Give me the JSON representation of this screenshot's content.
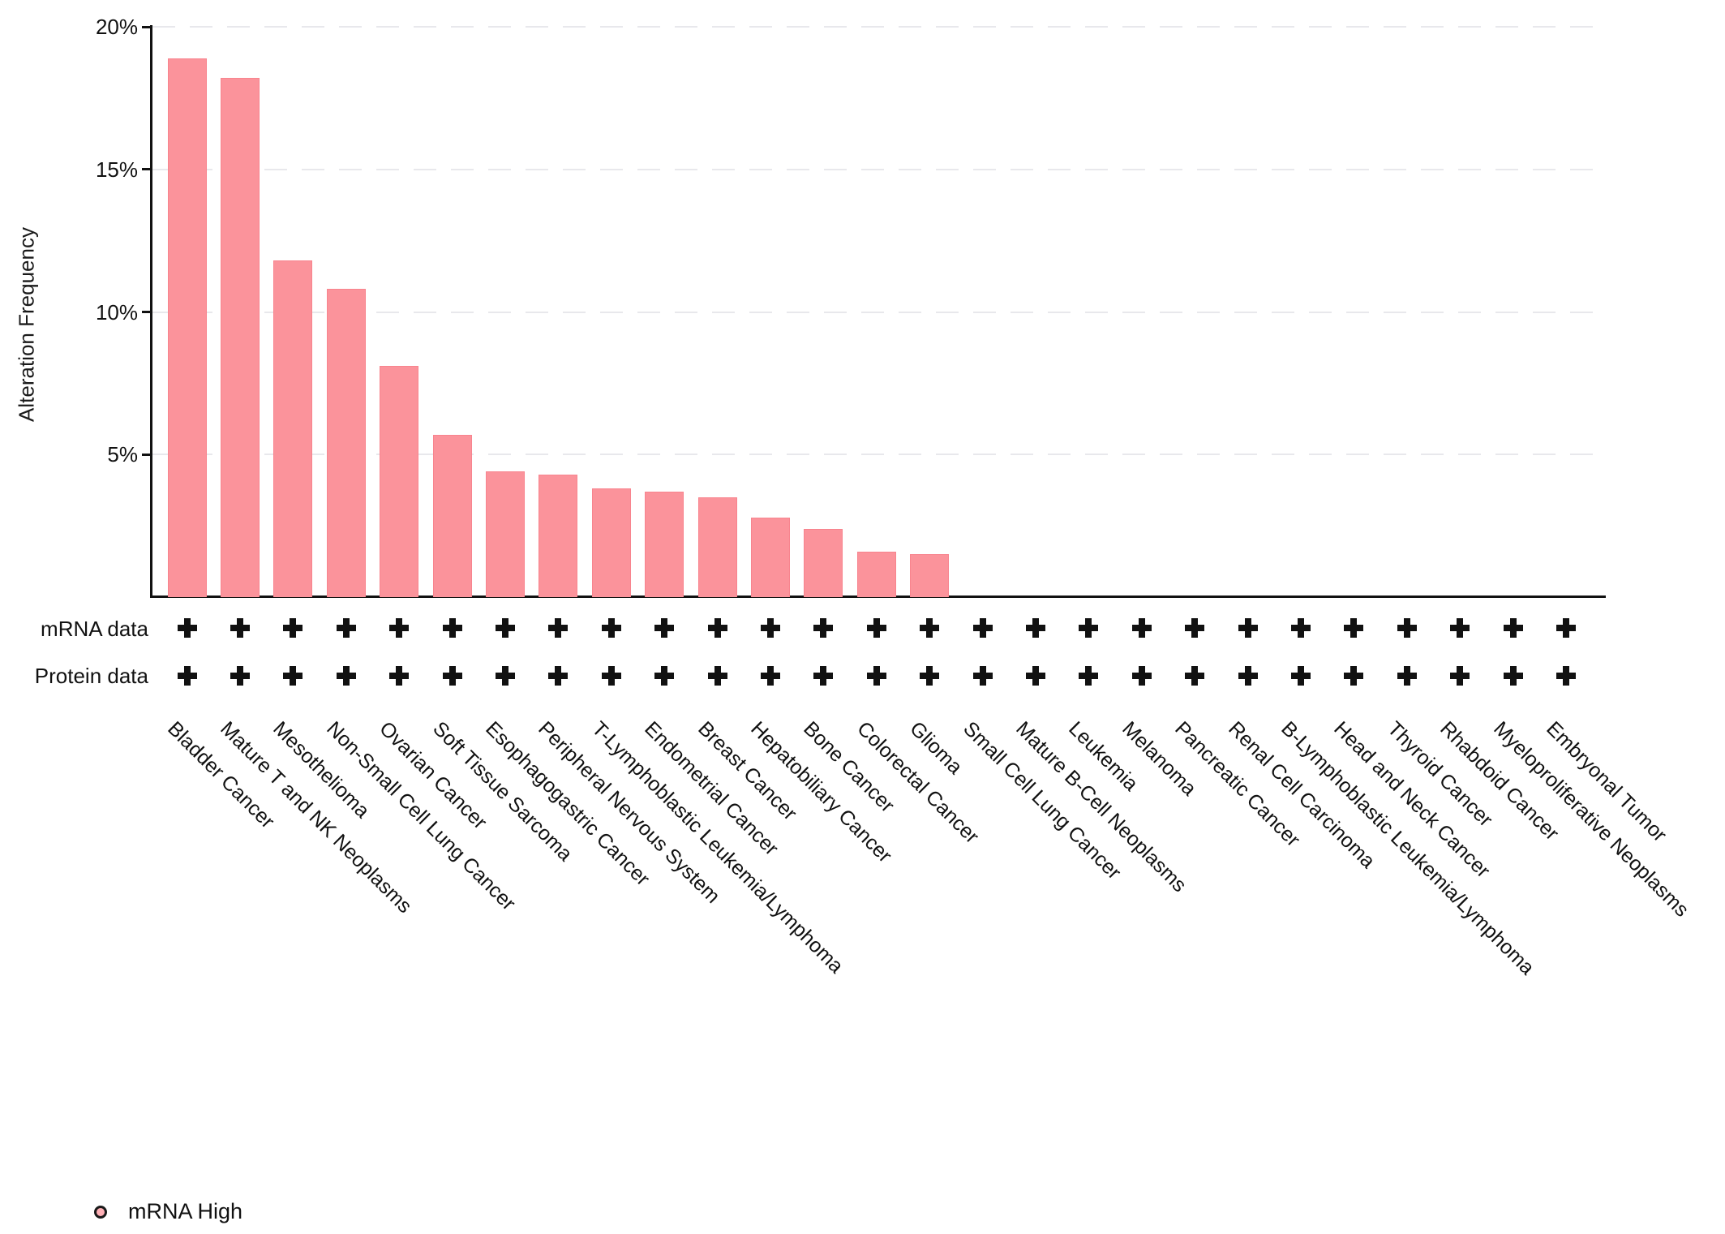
{
  "chart_data": {
    "type": "bar",
    "title": "",
    "ylabel": "Alteration Frequency",
    "ylim": [
      0,
      20
    ],
    "grid": true,
    "yticks": [
      {
        "label": "20%",
        "pct": 20
      },
      {
        "label": "15%",
        "pct": 15
      },
      {
        "label": "10%",
        "pct": 10
      },
      {
        "label": "5%",
        "pct": 5
      }
    ],
    "categories": [
      "Bladder Cancer",
      "Mature T and NK Neoplasms",
      "Mesothelioma",
      "Non-Small Cell Lung Cancer",
      "Ovarian Cancer",
      "Soft Tissue Sarcoma",
      "Esophagogastric Cancer",
      "Peripheral Nervous System",
      "T-Lymphoblastic Leukemia/Lymphoma",
      "Endometrial Cancer",
      "Breast Cancer",
      "Hepatobiliary Cancer",
      "Bone Cancer",
      "Colorectal Cancer",
      "Glioma",
      "Small Cell Lung Cancer",
      "Mature B-Cell Neoplasms",
      "Leukemia",
      "Melanoma",
      "Pancreatic Cancer",
      "Renal Cell Carcinoma",
      "B-Lymphoblastic Leukemia/Lymphoma",
      "Head and Neck Cancer",
      "Thyroid Cancer",
      "Rhabdoid Cancer",
      "Myeloproliferative Neoplasms",
      "Embryonal Tumor"
    ],
    "values": [
      18.9,
      18.2,
      11.8,
      10.8,
      8.1,
      5.7,
      4.4,
      4.3,
      3.8,
      3.7,
      3.5,
      2.8,
      2.4,
      1.6,
      1.5,
      0,
      0,
      0,
      0,
      0,
      0,
      0,
      0,
      0,
      0,
      0,
      0
    ],
    "series": [
      {
        "name": "mRNA High",
        "color": "#fb939b"
      }
    ],
    "clinical_tracks": [
      {
        "label": "mRNA data",
        "marks": [
          true,
          true,
          true,
          true,
          true,
          true,
          true,
          true,
          true,
          true,
          true,
          true,
          true,
          true,
          true,
          true,
          true,
          true,
          true,
          true,
          true,
          true,
          true,
          true,
          true,
          true,
          true
        ]
      },
      {
        "label": "Protein data",
        "marks": [
          true,
          true,
          true,
          true,
          true,
          true,
          true,
          true,
          true,
          true,
          true,
          true,
          true,
          true,
          true,
          true,
          true,
          true,
          true,
          true,
          true,
          true,
          true,
          true,
          true,
          true,
          true
        ]
      }
    ],
    "legend": [
      {
        "label": "mRNA High",
        "marker": "circle",
        "marker_fill": "#ffb0b6",
        "marker_stroke": "#1a1a1a"
      }
    ],
    "legend_position": "bottom-left"
  },
  "colors": {
    "bar_fill": "#fb939b",
    "bar_border": "#f8848e",
    "axis": "#111111",
    "gridline": "#e8e8ec",
    "plus": "#111111",
    "text": "#111111"
  }
}
